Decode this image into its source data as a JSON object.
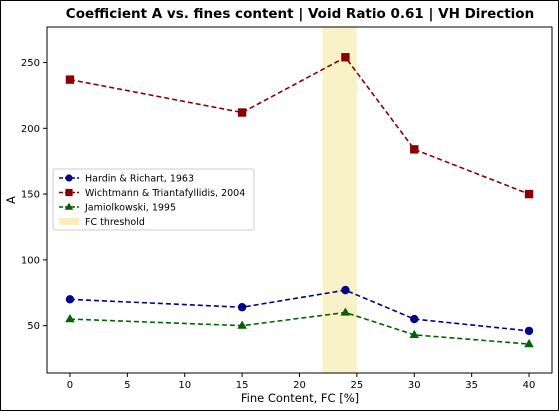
{
  "chart_data": {
    "type": "line",
    "title": "Coefficient A vs. fines content | Void Ratio 0.61 | VH Direction",
    "xlabel": "Fine Content, FC [%]",
    "ylabel": "A",
    "xlim": [
      -2,
      42
    ],
    "ylim": [
      14,
      277
    ],
    "xticks": [
      0,
      5,
      10,
      15,
      20,
      25,
      30,
      35,
      40
    ],
    "yticks": [
      50,
      100,
      150,
      200,
      250
    ],
    "grid": false,
    "legend_position": "center-left",
    "x": [
      0,
      15,
      24,
      30,
      40
    ],
    "series": [
      {
        "name": "Hardin & Richart, 1963",
        "values": [
          70,
          64,
          77,
          55,
          46
        ],
        "color": "#00008b",
        "marker": "circle",
        "linestyle": "dashed"
      },
      {
        "name": "Wichtmann & Triantafyllidis, 2004",
        "values": [
          237,
          212,
          254,
          184,
          150
        ],
        "color": "#8b0000",
        "marker": "square",
        "linestyle": "dashed"
      },
      {
        "name": "Jamiolkowski, 1995",
        "values": [
          55,
          50,
          60,
          43,
          36
        ],
        "color": "#006400",
        "marker": "triangle",
        "linestyle": "dashed"
      }
    ],
    "band": {
      "name": "FC threshold",
      "x_from": 22,
      "x_to": 25,
      "color": "#f5e7a1"
    }
  }
}
